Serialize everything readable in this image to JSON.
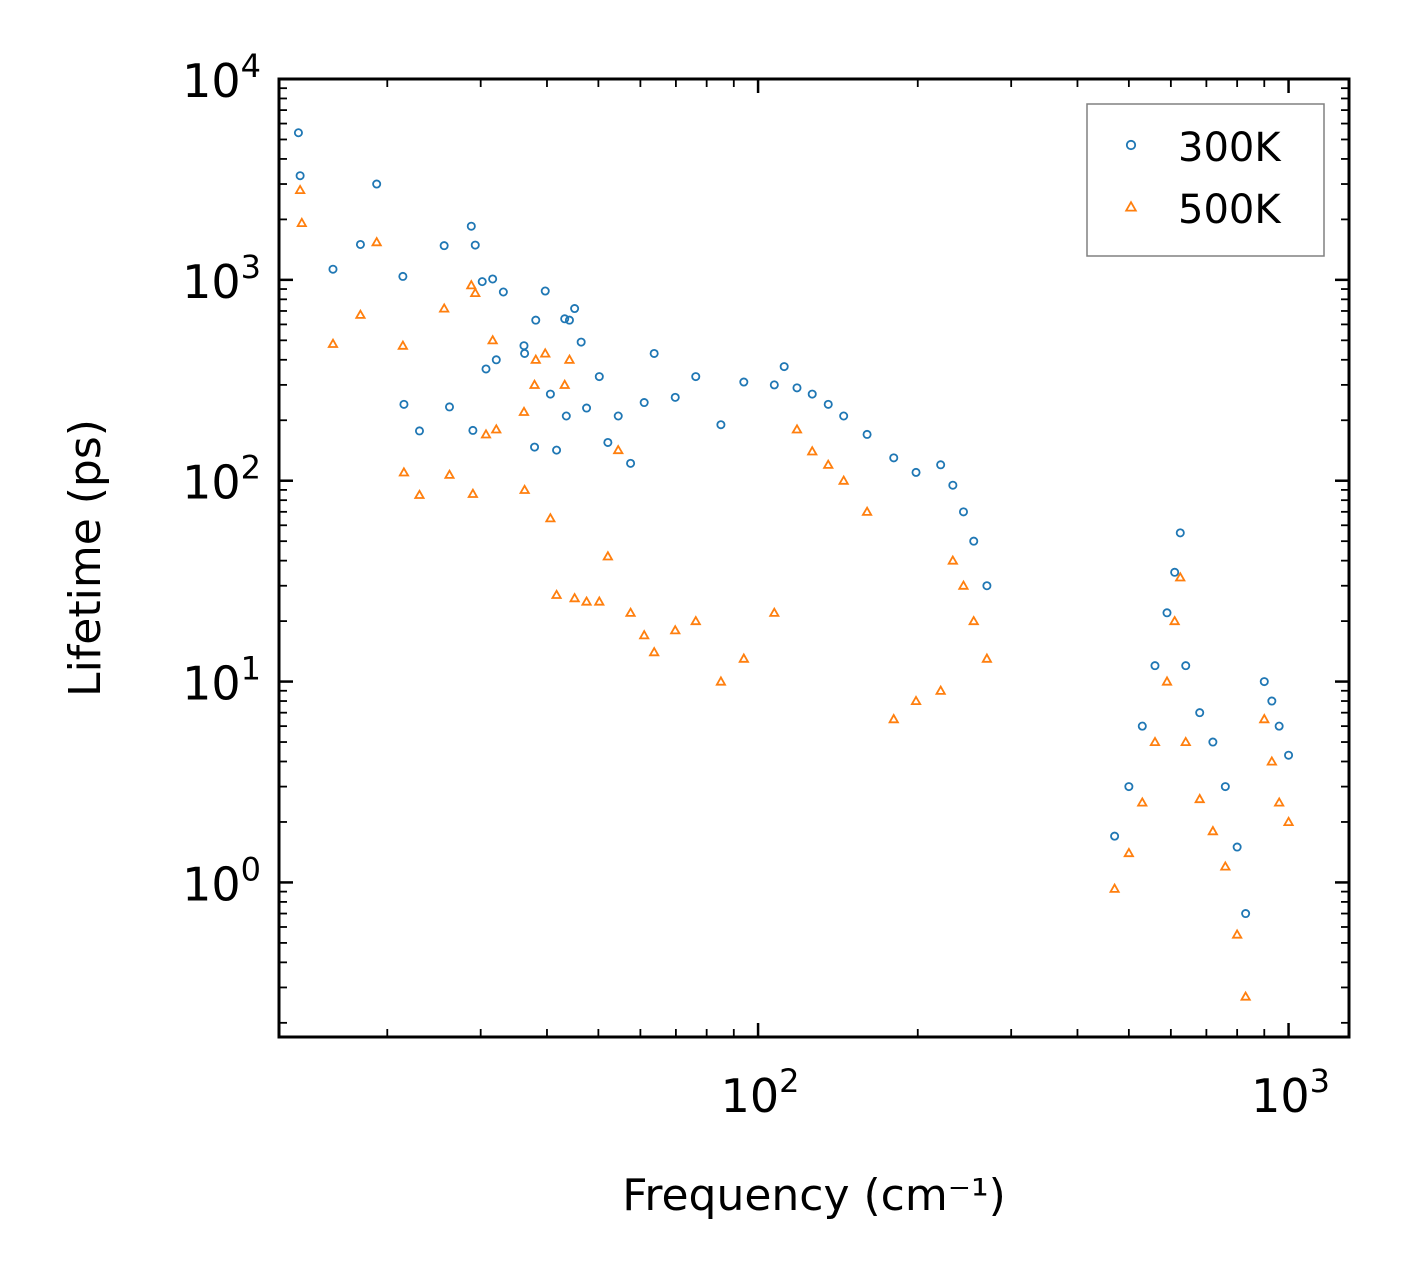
{
  "chart_data": {
    "type": "scatter",
    "title": "",
    "xlabel": "Frequency (cm⁻¹)",
    "ylabel": "Lifetime (ps)",
    "xscale": "log",
    "yscale": "log",
    "xlim": [
      12.5,
      1300
    ],
    "ylim": [
      0.17,
      10000
    ],
    "xticks": [
      {
        "value": 100,
        "base": "10",
        "exp": "2"
      },
      {
        "value": 1000,
        "base": "10",
        "exp": "3"
      }
    ],
    "yticks": [
      {
        "value": 1,
        "base": "10",
        "exp": "0"
      },
      {
        "value": 10,
        "base": "10",
        "exp": "1"
      },
      {
        "value": 100,
        "base": "10",
        "exp": "2"
      },
      {
        "value": 1000,
        "base": "10",
        "exp": "3"
      },
      {
        "value": 10000,
        "base": "10",
        "exp": "4"
      }
    ],
    "legend": {
      "position": "top-right"
    },
    "series": [
      {
        "name": "300K",
        "color": "#1f77b4",
        "marker": "circle",
        "points": [
          [
            13.6,
            5400
          ],
          [
            13.7,
            3300
          ],
          [
            15.8,
            1130
          ],
          [
            17.8,
            1500
          ],
          [
            19.1,
            3000
          ],
          [
            21.4,
            1040
          ],
          [
            21.5,
            240
          ],
          [
            23.0,
            177
          ],
          [
            25.6,
            1480
          ],
          [
            26.2,
            233
          ],
          [
            28.8,
            1850
          ],
          [
            29.0,
            178
          ],
          [
            29.3,
            1490
          ],
          [
            30.2,
            980
          ],
          [
            30.7,
            360
          ],
          [
            31.6,
            1010
          ],
          [
            32.1,
            400
          ],
          [
            33.1,
            870
          ],
          [
            36.2,
            470
          ],
          [
            36.3,
            430
          ],
          [
            37.9,
            147
          ],
          [
            38.1,
            630
          ],
          [
            39.7,
            880
          ],
          [
            40.6,
            270
          ],
          [
            41.7,
            142
          ],
          [
            43.2,
            640
          ],
          [
            43.5,
            210
          ],
          [
            44.1,
            630
          ],
          [
            45.1,
            720
          ],
          [
            46.4,
            490
          ],
          [
            47.5,
            230
          ],
          [
            50.2,
            330
          ],
          [
            52.1,
            155
          ],
          [
            54.5,
            210
          ],
          [
            57.5,
            122
          ],
          [
            61.0,
            245
          ],
          [
            63.7,
            430
          ],
          [
            69.8,
            260
          ],
          [
            76.3,
            330
          ],
          [
            85.1,
            190
          ],
          [
            94.0,
            310
          ],
          [
            107.3,
            300
          ],
          [
            112.0,
            370
          ],
          [
            118.4,
            290
          ],
          [
            126.5,
            270
          ],
          [
            135.6,
            240
          ],
          [
            145.0,
            210
          ],
          [
            160.5,
            170
          ],
          [
            180.2,
            130
          ],
          [
            198.5,
            110
          ],
          [
            220.9,
            120
          ],
          [
            232.9,
            95
          ],
          [
            243.9,
            70
          ],
          [
            255.0,
            50
          ],
          [
            270.0,
            30
          ],
          [
            470.0,
            1.7
          ],
          [
            500.0,
            3.0
          ],
          [
            530.0,
            6.0
          ],
          [
            560.0,
            12.0
          ],
          [
            590.0,
            22.0
          ],
          [
            610.0,
            35.0
          ],
          [
            625.0,
            55.0
          ],
          [
            640.0,
            12.0
          ],
          [
            680.0,
            7.0
          ],
          [
            720.0,
            5.0
          ],
          [
            760.0,
            3.0
          ],
          [
            800.0,
            1.5
          ],
          [
            830.0,
            0.7
          ],
          [
            900.0,
            10.0
          ],
          [
            930.0,
            8.0
          ],
          [
            960.0,
            6.0
          ],
          [
            1000.0,
            4.3
          ]
        ]
      },
      {
        "name": "500K",
        "color": "#ff7f0e",
        "marker": "triangle",
        "points": [
          [
            13.7,
            2800
          ],
          [
            13.8,
            1920
          ],
          [
            15.8,
            480
          ],
          [
            17.8,
            670
          ],
          [
            19.1,
            1540
          ],
          [
            21.4,
            470
          ],
          [
            21.5,
            110
          ],
          [
            23.0,
            85
          ],
          [
            25.6,
            720
          ],
          [
            26.2,
            107
          ],
          [
            28.8,
            940
          ],
          [
            29.0,
            86
          ],
          [
            29.3,
            860
          ],
          [
            30.7,
            170
          ],
          [
            31.6,
            500
          ],
          [
            32.1,
            180
          ],
          [
            36.2,
            220
          ],
          [
            36.3,
            90
          ],
          [
            37.9,
            300
          ],
          [
            38.1,
            400
          ],
          [
            39.7,
            430
          ],
          [
            40.6,
            65
          ],
          [
            41.7,
            27
          ],
          [
            43.2,
            300
          ],
          [
            44.1,
            400
          ],
          [
            45.1,
            26
          ],
          [
            47.5,
            25
          ],
          [
            50.2,
            25
          ],
          [
            52.1,
            42
          ],
          [
            54.5,
            142
          ],
          [
            57.5,
            22
          ],
          [
            61.0,
            17
          ],
          [
            63.7,
            14
          ],
          [
            69.8,
            18
          ],
          [
            76.3,
            20
          ],
          [
            85.1,
            10
          ],
          [
            94.0,
            13
          ],
          [
            107.3,
            22
          ],
          [
            118.4,
            180
          ],
          [
            126.5,
            140
          ],
          [
            135.6,
            120
          ],
          [
            145.0,
            100
          ],
          [
            160.5,
            70
          ],
          [
            180.2,
            6.5
          ],
          [
            198.5,
            8.0
          ],
          [
            220.9,
            9.0
          ],
          [
            232.9,
            40
          ],
          [
            243.9,
            30
          ],
          [
            255.0,
            20
          ],
          [
            270.0,
            13
          ],
          [
            470.0,
            0.93
          ],
          [
            500.0,
            1.4
          ],
          [
            530.0,
            2.5
          ],
          [
            560.0,
            5.0
          ],
          [
            590.0,
            10.0
          ],
          [
            610.0,
            20.0
          ],
          [
            625.0,
            33.0
          ],
          [
            640.0,
            5.0
          ],
          [
            680.0,
            2.6
          ],
          [
            720.0,
            1.8
          ],
          [
            760.0,
            1.2
          ],
          [
            800.0,
            0.55
          ],
          [
            830.0,
            0.27
          ],
          [
            900.0,
            6.5
          ],
          [
            930.0,
            4.0
          ],
          [
            960.0,
            2.5
          ],
          [
            1000.0,
            2.0
          ]
        ]
      }
    ]
  }
}
